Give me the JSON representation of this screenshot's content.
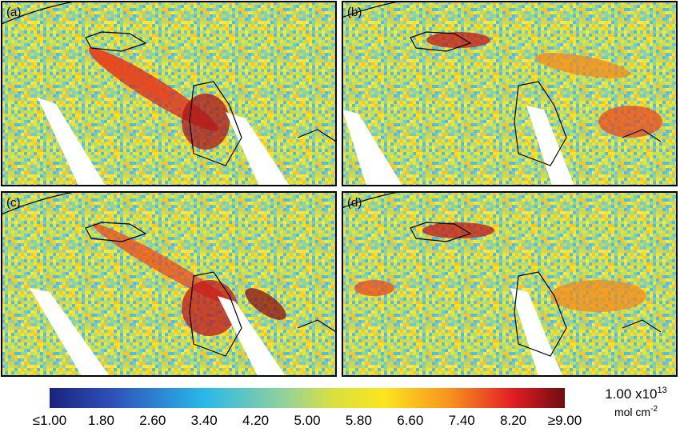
{
  "panels": [
    {
      "label": "(a)"
    },
    {
      "label": "(b)"
    },
    {
      "label": "(c)"
    },
    {
      "label": "(d)"
    }
  ],
  "colorbar": {
    "range": [
      1,
      9
    ],
    "ticks": [
      {
        "value": 1,
        "label": "≤1.00"
      },
      {
        "value": 1.8,
        "label": "1.80"
      },
      {
        "value": 2.6,
        "label": "2.60"
      },
      {
        "value": 3.4,
        "label": "3.40"
      },
      {
        "value": 4.2,
        "label": "4.20"
      },
      {
        "value": 5,
        "label": "5.00"
      },
      {
        "value": 5.8,
        "label": "5.80"
      },
      {
        "value": 6.6,
        "label": "6.60"
      },
      {
        "value": 7.4,
        "label": "7.40"
      },
      {
        "value": 8.2,
        "label": "8.20"
      },
      {
        "value": 9,
        "label": "≥9.00"
      }
    ],
    "unit": {
      "scale": "1.00 x10",
      "exponent": "13",
      "unit": "mol cm",
      "unit_exponent": "-2"
    }
  }
}
